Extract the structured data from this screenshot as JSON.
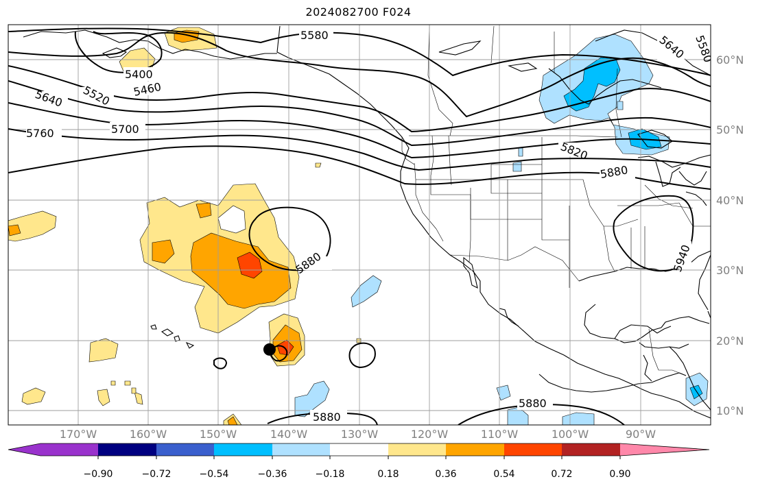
{
  "title": "2024082700 F024",
  "lat_labels": [
    {
      "text": "60°N",
      "lat": 60
    },
    {
      "text": "50°N",
      "lat": 50
    },
    {
      "text": "40°N",
      "lat": 40
    },
    {
      "text": "30°N",
      "lat": 30
    },
    {
      "text": "20°N",
      "lat": 20
    },
    {
      "text": "10°N",
      "lat": 10
    }
  ],
  "lon_labels": [
    {
      "text": "170°W",
      "lon": -170
    },
    {
      "text": "160°W",
      "lon": -160
    },
    {
      "text": "150°W",
      "lon": -150
    },
    {
      "text": "140°W",
      "lon": -140
    },
    {
      "text": "130°W",
      "lon": -130
    },
    {
      "text": "120°W",
      "lon": -120
    },
    {
      "text": "110°W",
      "lon": -110
    },
    {
      "text": "100°W",
      "lon": -100
    },
    {
      "text": "90°W",
      "lon": -90
    }
  ],
  "contour_labels": [
    "5580",
    "5640",
    "5520",
    "5400",
    "5460",
    "5700",
    "5760",
    "5820",
    "5880",
    "5940"
  ],
  "colorbar": {
    "colors": [
      "#9932cc",
      "#000080",
      "#3a5fcd",
      "#00bfff",
      "#afe1ff",
      "#ffffff",
      "#ffe78c",
      "#ffa500",
      "#ff4500",
      "#b22222",
      "#ff88aa"
    ],
    "ticks": [
      "−0.90",
      "−0.72",
      "−0.54",
      "−0.36",
      "−0.18",
      "0.18",
      "0.36",
      "0.54",
      "0.72",
      "0.90"
    ]
  },
  "marker": {
    "name": "black-dot",
    "lat": 18.7,
    "lon": -142.8
  }
}
